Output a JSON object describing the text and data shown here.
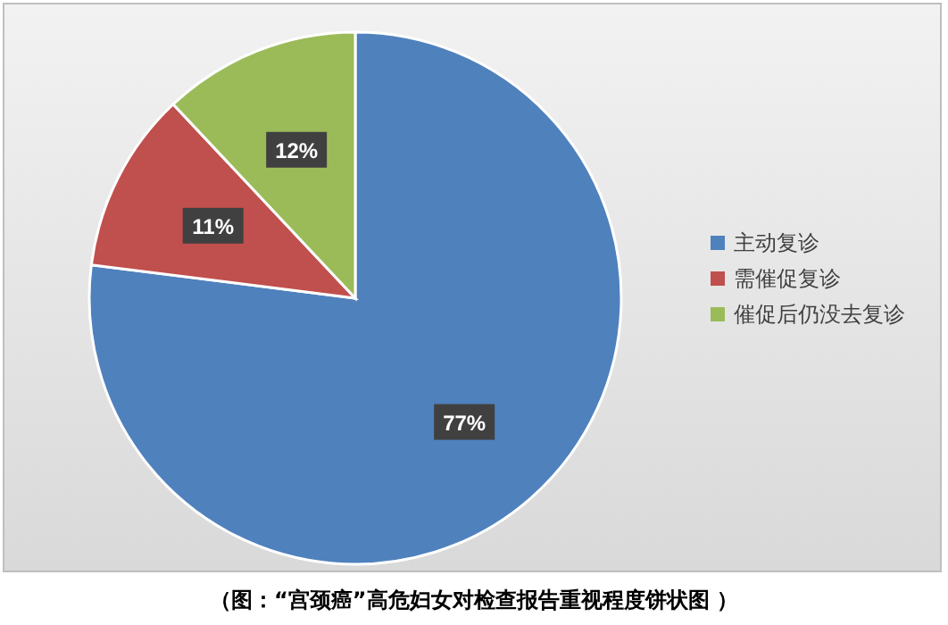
{
  "chart_data": {
    "type": "pie",
    "categories": [
      "主动复诊",
      "需催促复诊",
      "催促后仍没去复诊"
    ],
    "values": [
      77,
      11,
      12
    ],
    "colors": [
      "#4f81bd",
      "#c0504d",
      "#9bbb59"
    ],
    "value_labels": [
      "77%",
      "11%",
      "12%"
    ],
    "legend": "right",
    "annotations": [
      "（图：“宫颈癌”高危妇女对检查报告重视程度饼状图 ）"
    ]
  }
}
